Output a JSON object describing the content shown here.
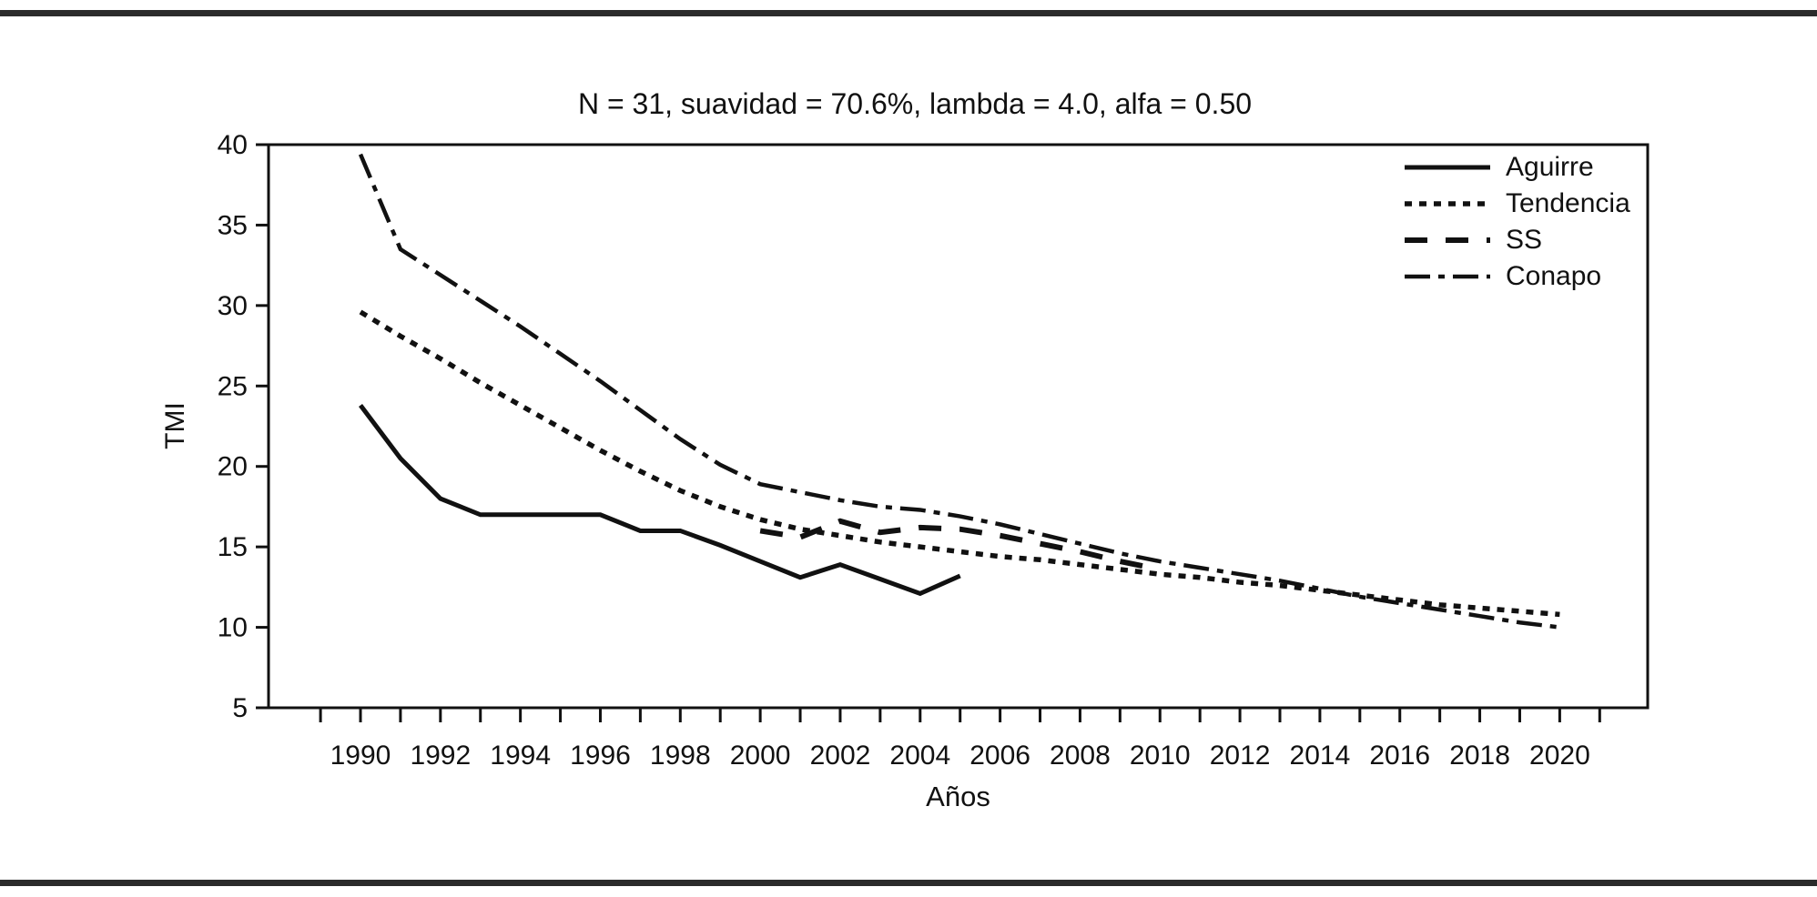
{
  "page": {
    "background": "#ffffff",
    "rule_color": "#2b2b2b",
    "ink_color": "#111111"
  },
  "chart_data": {
    "type": "line",
    "title": "N = 31, suavidad = 70.6%, lambda = 4.0, alfa = 0.50",
    "xlabel": "Años",
    "ylabel": "TMI",
    "x_range": [
      1987.7,
      2022.2
    ],
    "y_range": [
      5,
      40
    ],
    "y_ticks": [
      5,
      10,
      15,
      20,
      25,
      30,
      35,
      40
    ],
    "x_ticks": [
      1989,
      1990,
      1991,
      1992,
      1993,
      1994,
      1995,
      1996,
      1997,
      1998,
      1999,
      2000,
      2001,
      2002,
      2003,
      2004,
      2005,
      2006,
      2007,
      2008,
      2009,
      2010,
      2011,
      2012,
      2013,
      2014,
      2015,
      2016,
      2017,
      2018,
      2019,
      2020,
      2021
    ],
    "x_labeled_ticks": [
      1990,
      1992,
      1994,
      1996,
      1998,
      2000,
      2002,
      2004,
      2006,
      2008,
      2010,
      2012,
      2014,
      2016,
      2018,
      2020
    ],
    "grid": false,
    "legend_position": "top-right",
    "line_color": "#111111",
    "series": [
      {
        "name": "Aguirre",
        "dash": "solid",
        "stroke_width": 5,
        "x": [
          1990,
          1991,
          1992,
          1993,
          1994,
          1995,
          1996,
          1997,
          1998,
          1999,
          2000,
          2001,
          2002,
          2003,
          2004,
          2005
        ],
        "values": [
          23.8,
          20.5,
          18.0,
          17.0,
          17.0,
          17.0,
          17.0,
          16.0,
          16.0,
          15.1,
          14.1,
          13.1,
          13.9,
          13.0,
          12.1,
          13.2
        ]
      },
      {
        "name": "Tendencia",
        "dash": "dotted",
        "stroke_width": 5.5,
        "x": [
          1990,
          1991,
          1992,
          1993,
          1994,
          1995,
          1996,
          1997,
          1998,
          1999,
          2000,
          2001,
          2002,
          2003,
          2004,
          2005,
          2006,
          2007,
          2008,
          2009,
          2010,
          2011,
          2012,
          2013,
          2014,
          2015,
          2016,
          2017,
          2018,
          2019,
          2020
        ],
        "values": [
          29.6,
          28.1,
          26.7,
          25.2,
          23.8,
          22.4,
          21.0,
          19.7,
          18.5,
          17.5,
          16.7,
          16.1,
          15.7,
          15.3,
          15.0,
          14.7,
          14.4,
          14.2,
          13.9,
          13.6,
          13.3,
          13.1,
          12.8,
          12.6,
          12.3,
          12.0,
          11.7,
          11.4,
          11.2,
          11.0,
          10.8
        ]
      },
      {
        "name": "SS",
        "dash": "dashed",
        "stroke_width": 6,
        "x": [
          2000,
          2001,
          2002,
          2003,
          2004,
          2005,
          2006,
          2007,
          2008,
          2009,
          2010
        ],
        "values": [
          16.0,
          15.6,
          16.6,
          15.9,
          16.2,
          16.1,
          15.7,
          15.2,
          14.7,
          14.1,
          13.6
        ]
      },
      {
        "name": "Conapo",
        "dash": "dashdot",
        "stroke_width": 4.5,
        "x": [
          1990,
          1991,
          1992,
          1993,
          1994,
          1995,
          1996,
          1997,
          1998,
          1999,
          2000,
          2001,
          2002,
          2003,
          2004,
          2005,
          2006,
          2007,
          2008,
          2009,
          2010,
          2011,
          2012,
          2013,
          2014,
          2015,
          2016,
          2017,
          2018,
          2019,
          2020
        ],
        "values": [
          39.4,
          33.5,
          31.9,
          30.3,
          28.7,
          27.0,
          25.3,
          23.5,
          21.7,
          20.1,
          18.9,
          18.4,
          17.9,
          17.5,
          17.3,
          16.9,
          16.4,
          15.8,
          15.2,
          14.6,
          14.1,
          13.7,
          13.3,
          12.9,
          12.4,
          11.9,
          11.5,
          11.1,
          10.7,
          10.3,
          10.0
        ]
      }
    ]
  }
}
